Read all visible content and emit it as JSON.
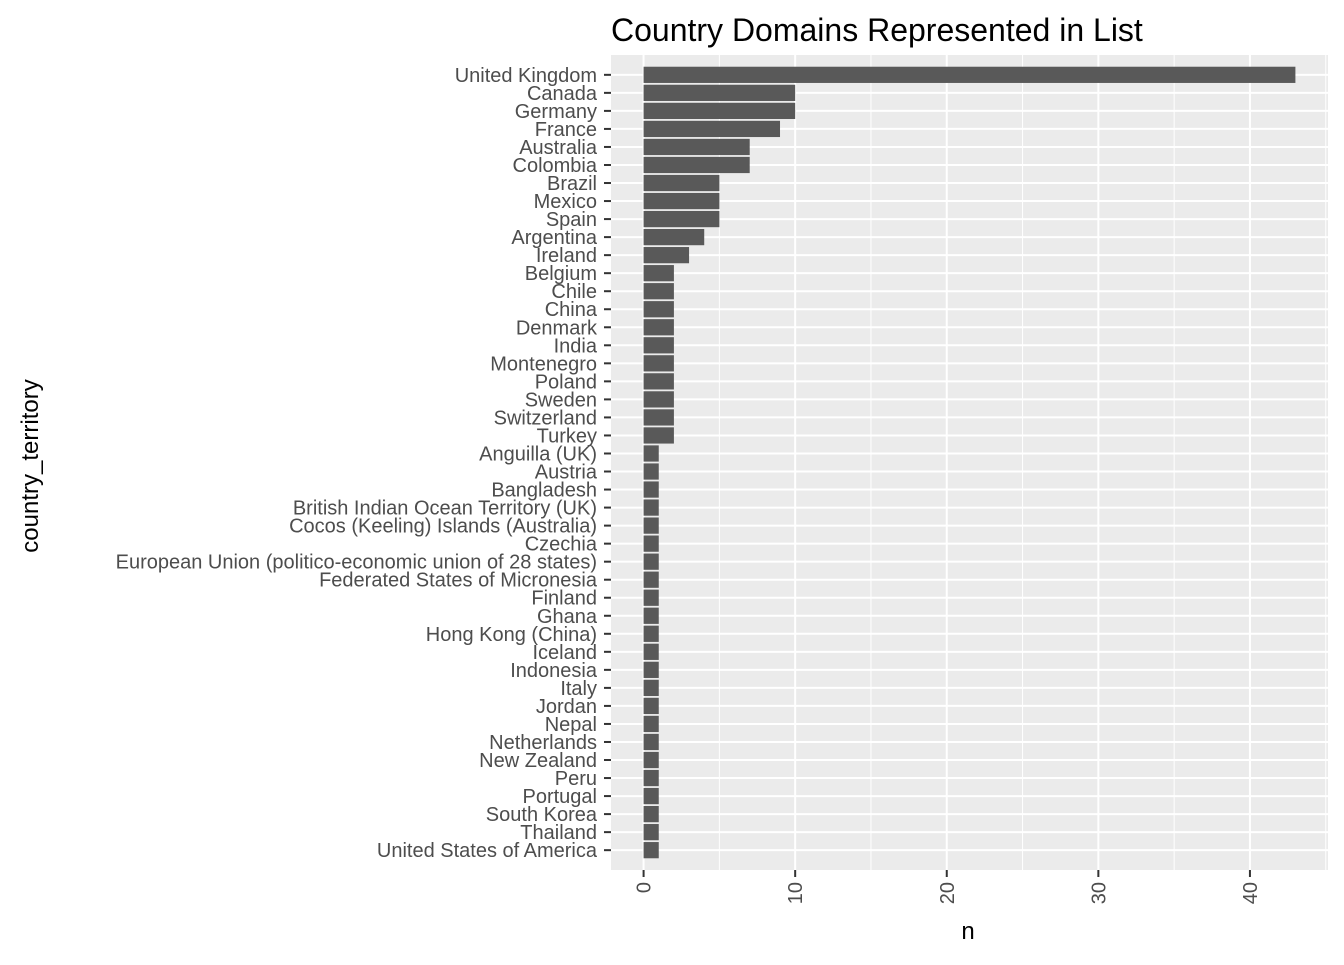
{
  "chart_data": {
    "type": "bar",
    "orientation": "horizontal",
    "title": "Country Domains Represented in List",
    "xlabel": "n",
    "ylabel": "country_territory",
    "xlim": [
      -2.15,
      45.15
    ],
    "x_ticks": [
      0,
      10,
      20,
      30,
      40
    ],
    "grid": true,
    "legend": "none",
    "colors": {
      "bar": "#595959",
      "panel": "#ebebeb",
      "grid": "#ffffff",
      "tick_text": "#4d4d4d",
      "tick_mark": "#333333"
    },
    "categories": [
      "United Kingdom",
      "Canada",
      "Germany",
      "France",
      "Australia",
      "Colombia",
      "Brazil",
      "Mexico",
      "Spain",
      "Argentina",
      "Ireland",
      "Belgium",
      "Chile",
      "China",
      "Denmark",
      "India",
      "Montenegro",
      "Poland",
      "Sweden",
      "Switzerland",
      "Turkey",
      "Anguilla (UK)",
      "Austria",
      "Bangladesh",
      "British Indian Ocean Territory (UK)",
      "Cocos (Keeling) Islands (Australia)",
      "Czechia",
      "European Union (politico-economic union of 28 states)",
      "Federated States of Micronesia",
      "Finland",
      "Ghana",
      "Hong Kong (China)",
      "Iceland",
      "Indonesia",
      "Italy",
      "Jordan",
      "Nepal",
      "Netherlands",
      "New Zealand",
      "Peru",
      "Portugal",
      "South Korea",
      "Thailand",
      "United States of America"
    ],
    "values": [
      43,
      10,
      10,
      9,
      7,
      7,
      5,
      5,
      5,
      4,
      3,
      2,
      2,
      2,
      2,
      2,
      2,
      2,
      2,
      2,
      2,
      1,
      1,
      1,
      1,
      1,
      1,
      1,
      1,
      1,
      1,
      1,
      1,
      1,
      1,
      1,
      1,
      1,
      1,
      1,
      1,
      1,
      1,
      1
    ]
  }
}
